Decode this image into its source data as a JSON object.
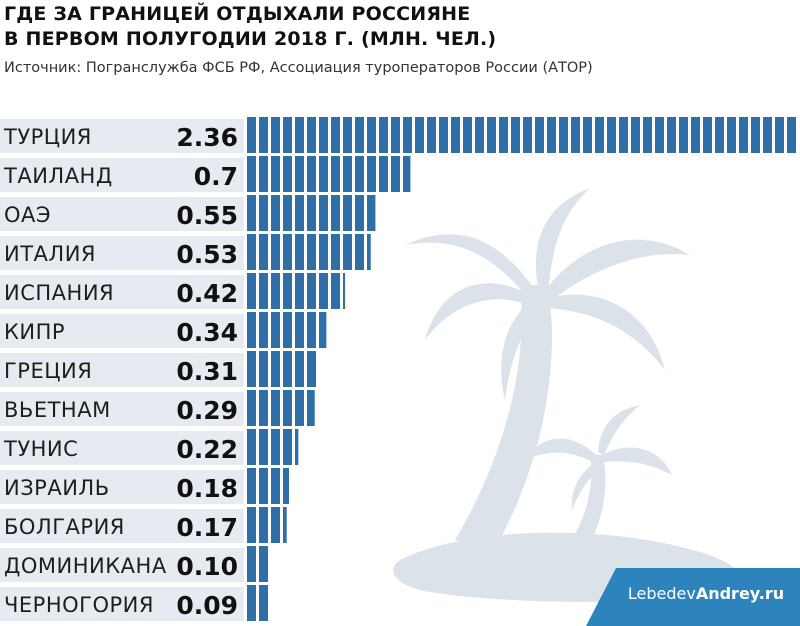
{
  "title_line1": "ГДЕ ЗА ГРАНИЦЕЙ ОТДЫХАЛИ РОССИЯНЕ",
  "title_line2": "В ПЕРВОМ ПОЛУГОДИИ 2018 Г. (МЛН. ЧЕЛ.)",
  "source": "Источник: Погранслужба ФСБ РФ, Ассоциация туроператоров России (АТОР)",
  "watermark": {
    "part1": "Lebedev",
    "part2": "Andrey.ru"
  },
  "colors": {
    "bar": "#2d6fa6",
    "row_band": "#e5ebf1",
    "palm": "#dbe2ea",
    "watermark_bg": "#2d84bd"
  },
  "chart_data": {
    "type": "bar",
    "orientation": "horizontal",
    "title": "ГДЕ ЗА ГРАНИЦЕЙ ОТДЫХАЛИ РОССИЯНЕ В ПЕРВОМ ПОЛУГОДИИ 2018 Г. (МЛН. ЧЕЛ.)",
    "categories": [
      "ТУРЦИЯ",
      "ТАИЛАНД",
      "ОАЭ",
      "ИТАЛИЯ",
      "ИСПАНИЯ",
      "КИПР",
      "ГРЕЦИЯ",
      "ВЬЕТНАМ",
      "ТУНИС",
      "ИЗРАИЛЬ",
      "БОЛГАРИЯ",
      "ДОМИНИКАНА",
      "ЧЕРНОГОРИЯ"
    ],
    "values": [
      2.36,
      0.7,
      0.55,
      0.53,
      0.42,
      0.34,
      0.31,
      0.29,
      0.22,
      0.18,
      0.17,
      0.1,
      0.09
    ],
    "value_labels": [
      "2.36",
      "0.7",
      "0.55",
      "0.53",
      "0.42",
      "0.34",
      "0.31",
      "0.29",
      "0.22",
      "0.18",
      "0.17",
      "0.10",
      "0.09"
    ],
    "xlim": [
      0,
      2.36
    ],
    "xlabel": "",
    "ylabel": "",
    "grid": false,
    "unit": "млн. чел."
  }
}
